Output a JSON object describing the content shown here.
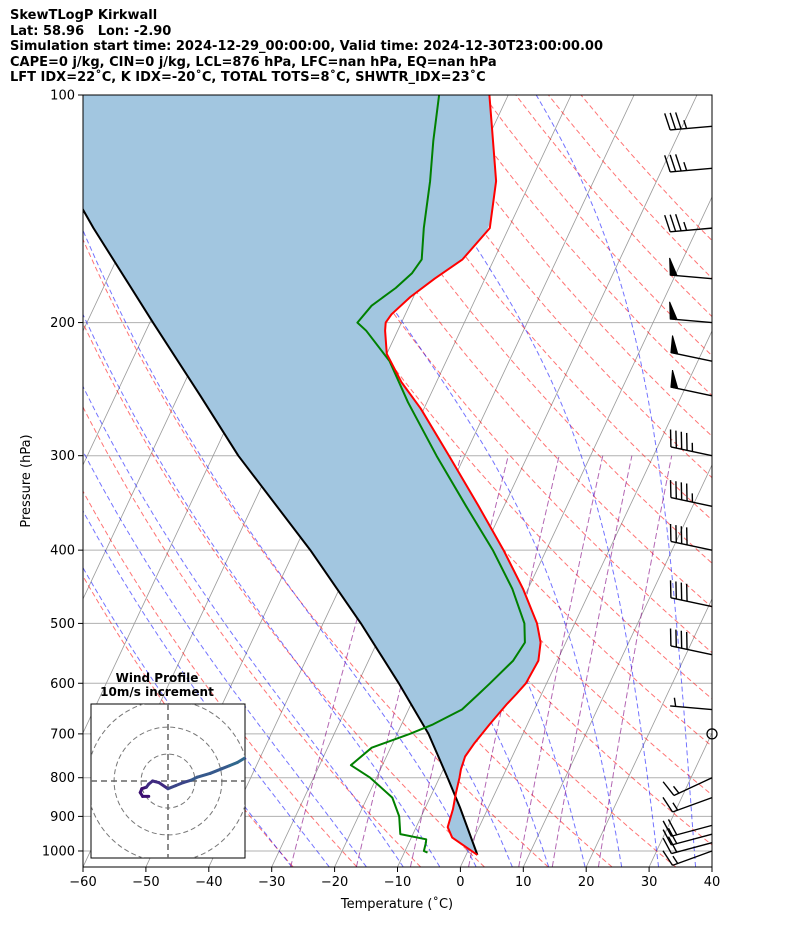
{
  "header": {
    "line1": "SkewTLogP Kirkwall",
    "line2": "Lat: 58.96   Lon: -2.90",
    "line3": "Simulation start time: 2024-12-29_00:00:00, Valid time: 2024-12-30T23:00:00.00",
    "line4": "CAPE=0 j/kg, CIN=0 j/kg, LCL=876 hPa, LFC=nan hPa, EQ=nan hPa",
    "line5": "LFT IDX=22˚C, K IDX=-20˚C, TOTAL TOTS=8˚C, SHWTR_IDX=23˚C"
  },
  "chart_data": {
    "type": "skewt",
    "xlabel": "Temperature (˚C)",
    "ylabel": "Pressure (hPa)",
    "xlim": [
      -60,
      40
    ],
    "ylim": [
      1050,
      100
    ],
    "xticks": [
      -60,
      -50,
      -40,
      -30,
      -20,
      -10,
      0,
      10,
      20,
      30,
      40
    ],
    "xtick_labels": [
      "−60",
      "−50",
      "−40",
      "−30",
      "−20",
      "−10",
      "0",
      "10",
      "20",
      "30",
      "40"
    ],
    "yticks": [
      1000,
      900,
      800,
      700,
      600,
      500,
      400,
      300,
      200,
      100
    ],
    "ytick_labels": [
      "1000",
      "900",
      "800",
      "700",
      "600",
      "500",
      "400",
      "300",
      "200",
      "100"
    ],
    "temperature": {
      "color": "#ff0000",
      "points": [
        [
          1012,
          1.8
        ],
        [
          960,
          -3.5
        ],
        [
          930,
          -5.0
        ],
        [
          880,
          -5.5
        ],
        [
          840,
          -6.2
        ],
        [
          800,
          -6.8
        ],
        [
          780,
          -7.2
        ],
        [
          750,
          -7.5
        ],
        [
          720,
          -7.0
        ],
        [
          680,
          -6.0
        ],
        [
          640,
          -4.8
        ],
        [
          620,
          -4.0
        ],
        [
          600,
          -3.3
        ],
        [
          560,
          -3.0
        ],
        [
          530,
          -4.0
        ],
        [
          500,
          -6.0
        ],
        [
          450,
          -10.8
        ],
        [
          400,
          -16.8
        ],
        [
          350,
          -24.0
        ],
        [
          300,
          -32.5
        ],
        [
          260,
          -40.5
        ],
        [
          240,
          -45.5
        ],
        [
          220,
          -50.0
        ],
        [
          205,
          -52.0
        ],
        [
          200,
          -52.5
        ],
        [
          195,
          -52.2
        ],
        [
          185,
          -50.5
        ],
        [
          175,
          -48.0
        ],
        [
          165,
          -45.0
        ],
        [
          150,
          -43.0
        ],
        [
          130,
          -45.5
        ],
        [
          115,
          -49.0
        ],
        [
          100,
          -53.0
        ]
      ]
    },
    "dewpoint": {
      "color": "#008000",
      "points": [
        [
          1005,
          -6.3
        ],
        [
          1000,
          -7.0
        ],
        [
          975,
          -7.3
        ],
        [
          965,
          -7.5
        ],
        [
          950,
          -12.0
        ],
        [
          900,
          -13.5
        ],
        [
          850,
          -16.0
        ],
        [
          800,
          -21.0
        ],
        [
          770,
          -25.0
        ],
        [
          730,
          -23.0
        ],
        [
          700,
          -18.0
        ],
        [
          680,
          -15.0
        ],
        [
          650,
          -11.5
        ],
        [
          620,
          -10.0
        ],
        [
          600,
          -9.0
        ],
        [
          560,
          -7.0
        ],
        [
          530,
          -6.5
        ],
        [
          500,
          -8.0
        ],
        [
          450,
          -12.5
        ],
        [
          400,
          -18.5
        ],
        [
          350,
          -26.0
        ],
        [
          300,
          -34.5
        ],
        [
          255,
          -43.0
        ],
        [
          225,
          -49.0
        ],
        [
          205,
          -55.0
        ],
        [
          200,
          -57.0
        ],
        [
          190,
          -56.0
        ],
        [
          180,
          -53.5
        ],
        [
          172,
          -52.0
        ],
        [
          165,
          -51.5
        ],
        [
          150,
          -53.5
        ],
        [
          130,
          -56.0
        ],
        [
          115,
          -58.5
        ],
        [
          100,
          -61.0
        ]
      ]
    },
    "parcel": {
      "color": "#000000",
      "points": [
        [
          1012,
          1.8
        ],
        [
          876,
          -4.5
        ],
        [
          800,
          -8.7
        ],
        [
          700,
          -15.0
        ],
        [
          600,
          -23.5
        ],
        [
          500,
          -34.0
        ],
        [
          400,
          -47.5
        ],
        [
          300,
          -66.0
        ],
        [
          250,
          -76.5
        ],
        [
          200,
          -89.5
        ],
        [
          150,
          -106.0
        ],
        [
          100,
          -128.0
        ]
      ]
    },
    "cape_fill_color": "#a2c6e0",
    "dry_adiabat_color": "#ff0000",
    "moist_adiabat_color": "#0000ff",
    "mixing_ratio_color": "#800080",
    "isotherm_color": "#999999",
    "wind_barbs": [
      {
        "pressure": 1000,
        "speed_kt": 15,
        "direction_deg": 250
      },
      {
        "pressure": 975,
        "speed_kt": 20,
        "direction_deg": 255
      },
      {
        "pressure": 950,
        "speed_kt": 20,
        "direction_deg": 255
      },
      {
        "pressure": 925,
        "speed_kt": 20,
        "direction_deg": 255
      },
      {
        "pressure": 850,
        "speed_kt": 15,
        "direction_deg": 250
      },
      {
        "pressure": 800,
        "speed_kt": 15,
        "direction_deg": 245
      },
      {
        "pressure": 700,
        "speed_kt": 0,
        "direction_deg": 0
      },
      {
        "pressure": 650,
        "speed_kt": 5,
        "direction_deg": 275
      },
      {
        "pressure": 550,
        "speed_kt": 40,
        "direction_deg": 282
      },
      {
        "pressure": 475,
        "speed_kt": 40,
        "direction_deg": 282
      },
      {
        "pressure": 400,
        "speed_kt": 40,
        "direction_deg": 282
      },
      {
        "pressure": 350,
        "speed_kt": 45,
        "direction_deg": 282
      },
      {
        "pressure": 300,
        "speed_kt": 45,
        "direction_deg": 282
      },
      {
        "pressure": 250,
        "speed_kt": 50,
        "direction_deg": 282
      },
      {
        "pressure": 225,
        "speed_kt": 50,
        "direction_deg": 282
      },
      {
        "pressure": 200,
        "speed_kt": 50,
        "direction_deg": 275
      },
      {
        "pressure": 175,
        "speed_kt": 50,
        "direction_deg": 275
      },
      {
        "pressure": 150,
        "speed_kt": 35,
        "direction_deg": 265
      },
      {
        "pressure": 125,
        "speed_kt": 35,
        "direction_deg": 265
      },
      {
        "pressure": 110,
        "speed_kt": 35,
        "direction_deg": 265
      }
    ],
    "hodograph": {
      "title": "Wind Profile",
      "subtitle": "10m/s increment",
      "ring_increment_ms": 10,
      "rings": 3,
      "u_range": [
        -10,
        10
      ],
      "v_range": [
        -10,
        10
      ],
      "points_uv": [
        [
          -2.5,
          -2.0
        ],
        [
          -3.3,
          -2.0
        ],
        [
          -3.6,
          -1.5
        ],
        [
          -3.4,
          -1.0
        ],
        [
          -2.8,
          -0.8
        ],
        [
          -2.5,
          -0.4
        ],
        [
          -2.0,
          0.0
        ],
        [
          -1.2,
          -0.2
        ],
        [
          0.0,
          -1.0
        ],
        [
          1.0,
          -0.6
        ],
        [
          2.0,
          -0.2
        ],
        [
          3.0,
          0.1
        ],
        [
          3.8,
          0.5
        ],
        [
          5.5,
          1.0
        ],
        [
          7.0,
          1.6
        ],
        [
          8.0,
          2.0
        ],
        [
          9.0,
          2.4
        ],
        [
          10.0,
          3.0
        ]
      ]
    }
  }
}
